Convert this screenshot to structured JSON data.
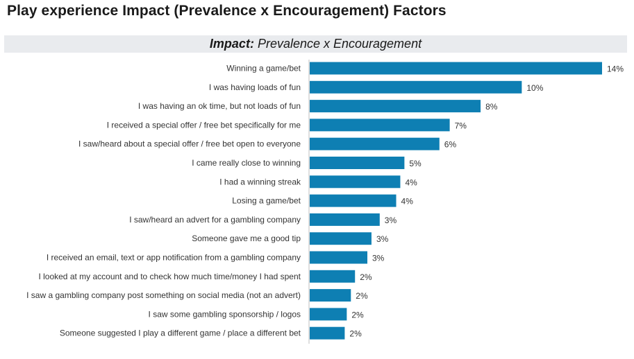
{
  "page": {
    "title": "Play experience Impact (Prevalence x Encouragement) Factors",
    "subtitle_lead": "Impact:",
    "subtitle_rest": " Prevalence x Encouragement"
  },
  "colors": {
    "bar": "#0e7fb3",
    "axis": "#bfbfbf",
    "subtitle_bg": "#e9ebee"
  },
  "chart_data": {
    "type": "bar",
    "orientation": "horizontal",
    "title": "Impact: Prevalence x Encouragement",
    "xlabel": "",
    "ylabel": "",
    "xlim": [
      0,
      14.2
    ],
    "grid": false,
    "categories": [
      "Winning a game/bet",
      "I was having loads of fun",
      "I was having an ok time, but not loads of fun",
      "I received a special offer / free bet specifically for me",
      "I saw/heard about a special offer / free bet open to everyone",
      "I came really close to winning",
      "I had a winning streak",
      "Losing a game/bet",
      "I saw/heard an advert for a gambling company",
      "Someone gave me a good tip",
      "I received an email, text or app notification from a gambling company",
      "I looked at my account and to check how much time/money I had spent",
      "I saw a gambling company post something on social media (not an advert)",
      "I saw some gambling sponsorship / logos",
      "Someone suggested I play a different game / place a different bet"
    ],
    "values": [
      14.2,
      10.3,
      8.3,
      6.8,
      6.3,
      4.6,
      4.4,
      4.2,
      3.4,
      3.0,
      2.8,
      2.2,
      2.0,
      1.8,
      1.7
    ],
    "data_labels": [
      "14%",
      "10%",
      "8%",
      "7%",
      "6%",
      "5%",
      "4%",
      "4%",
      "3%",
      "3%",
      "3%",
      "2%",
      "2%",
      "2%",
      "2%"
    ]
  }
}
